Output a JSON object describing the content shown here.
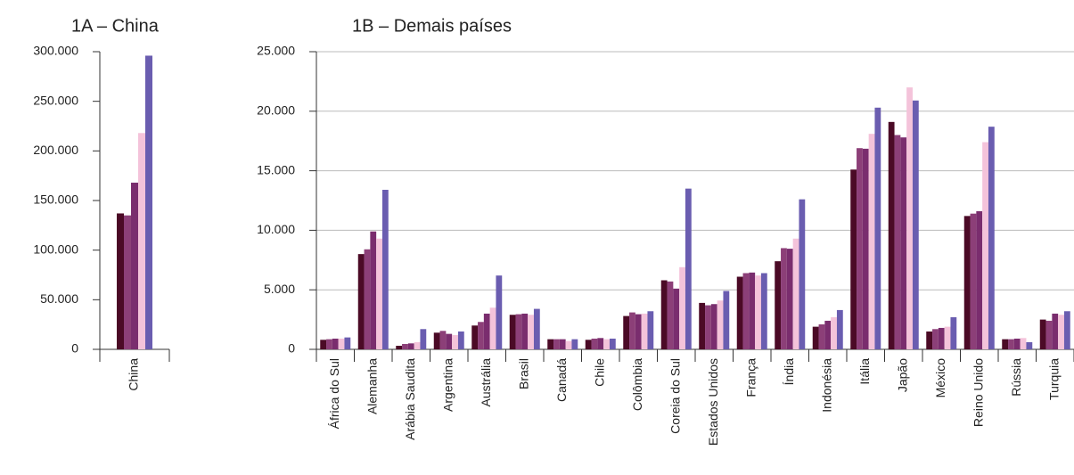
{
  "chart_data": [
    {
      "type": "bar",
      "title": "1A – China",
      "categories": [
        "China"
      ],
      "series": [
        {
          "color": "#4b0a26",
          "values": [
            137000
          ]
        },
        {
          "color": "#8c3f78",
          "values": [
            135000
          ]
        },
        {
          "color": "#7a2d6e",
          "values": [
            168000
          ]
        },
        {
          "color": "#f4c3da",
          "values": [
            218000
          ]
        },
        {
          "color": "#6a5db0",
          "values": [
            296000
          ]
        }
      ],
      "ylim": [
        0,
        300000
      ],
      "yticks": [
        0,
        {
          "value": 50000,
          "label": "50.000"
        },
        {
          "value": 100000,
          "label": "100.000"
        },
        {
          "value": 150000,
          "label": "150.000"
        },
        {
          "value": 200000,
          "label": "200.000"
        },
        {
          "value": 250000,
          "label": "250.000"
        },
        {
          "value": 300000,
          "label": "300.000"
        }
      ],
      "grid": false
    },
    {
      "type": "bar",
      "title": "1B – Demais países",
      "categories": [
        "África do Sul",
        "Alemanha",
        "Arábia Saudita",
        "Argentina",
        "Austrália",
        "Brasil",
        "Canadá",
        "Chile",
        "Colômbia",
        "Coreia do Sul",
        "Estados Unidos",
        "França",
        "Índia",
        "Indonésia",
        "Itália",
        "Japão",
        "México",
        "Reino Unido",
        "Rússia",
        "Turquia"
      ],
      "series": [
        {
          "color": "#4b0a26",
          "values": [
            800,
            8000,
            300,
            1400,
            2000,
            2900,
            850,
            800,
            2800,
            5800,
            3900,
            6100,
            7400,
            1900,
            15100,
            19100,
            1500,
            11200,
            850,
            2500
          ]
        },
        {
          "color": "#8c3f78",
          "values": [
            850,
            8400,
            450,
            1550,
            2300,
            2950,
            850,
            900,
            3100,
            5700,
            3700,
            6400,
            8500,
            2100,
            16900,
            18000,
            1700,
            11400,
            850,
            2400
          ]
        },
        {
          "color": "#7a2d6e",
          "values": [
            900,
            9900,
            500,
            1300,
            3000,
            3000,
            850,
            950,
            2950,
            5100,
            3800,
            6450,
            8450,
            2400,
            16850,
            17800,
            1800,
            11600,
            900,
            3000
          ]
        },
        {
          "color": "#f4c3da",
          "values": [
            900,
            9300,
            600,
            1200,
            3500,
            2900,
            700,
            850,
            3000,
            6900,
            4100,
            6200,
            9300,
            2700,
            18100,
            22000,
            1900,
            17400,
            950,
            2900
          ]
        },
        {
          "color": "#6a5db0",
          "values": [
            1000,
            13400,
            1700,
            1500,
            6200,
            3400,
            850,
            900,
            3200,
            13500,
            4900,
            6400,
            12600,
            3300,
            20300,
            20900,
            2700,
            18700,
            600,
            3200
          ]
        }
      ],
      "ylim": [
        0,
        25000
      ],
      "yticks": [
        0,
        {
          "value": 5000,
          "label": "5.000"
        },
        {
          "value": 10000,
          "label": "10.000"
        },
        {
          "value": 15000,
          "label": "15.000"
        },
        {
          "value": 20000,
          "label": "20.000"
        },
        {
          "value": 25000,
          "label": "25.000"
        }
      ],
      "grid": true
    }
  ]
}
